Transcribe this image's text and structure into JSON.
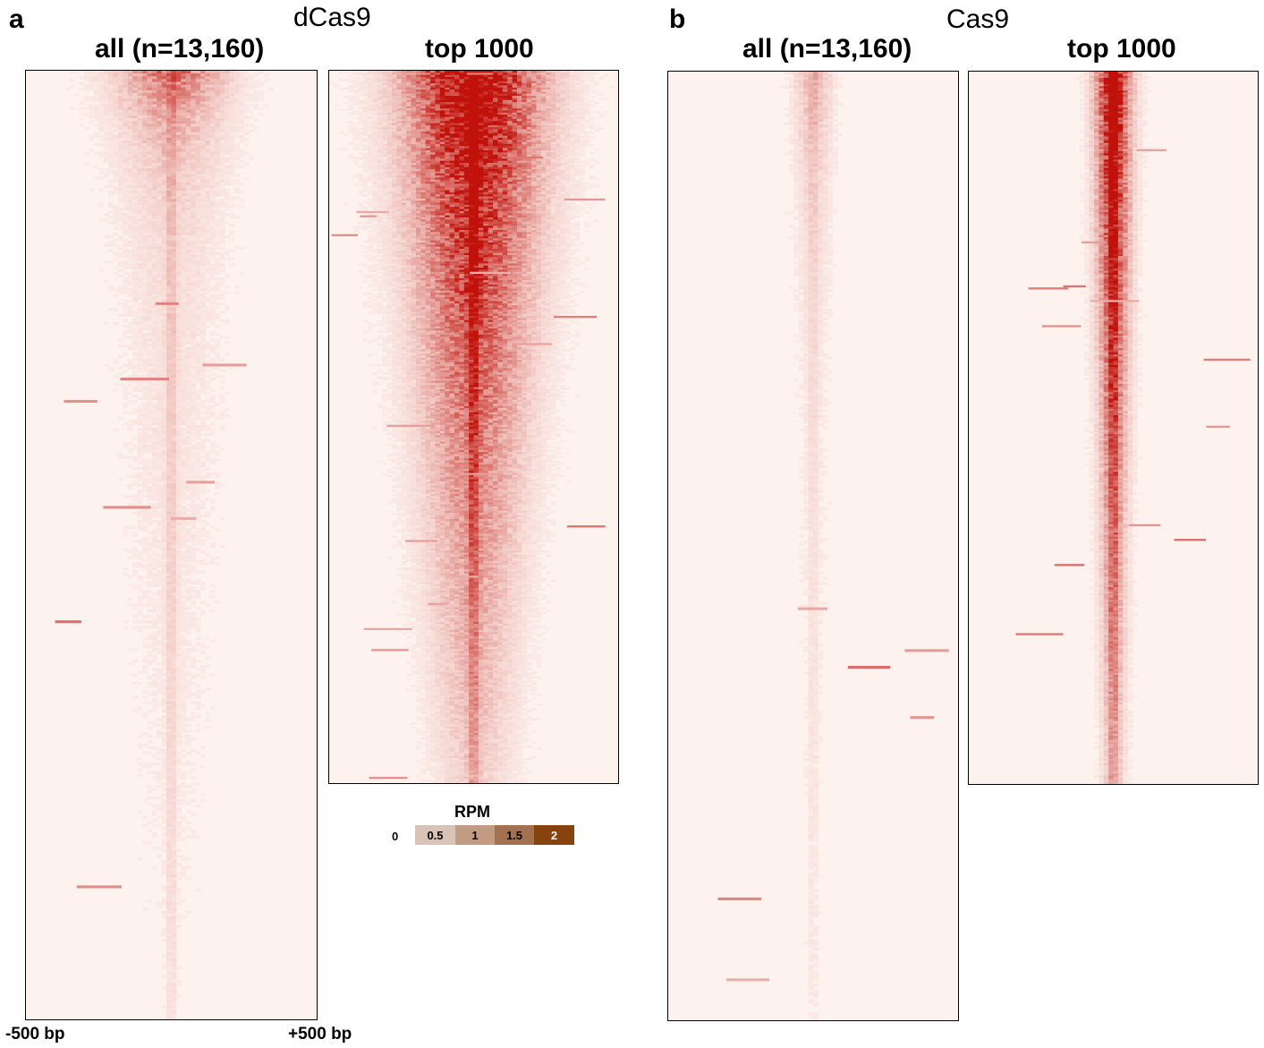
{
  "panels": [
    {
      "letter": "a",
      "title": "dCas9",
      "heatmaps": [
        {
          "label": "all (n=13,160)",
          "peak_intensity": 0.55,
          "center_intensity": 0.18,
          "spread": 0.22,
          "decay": 0.06
        },
        {
          "label": "top 1000",
          "peak_intensity": 1.0,
          "center_intensity": 0.65,
          "spread": 0.28,
          "decay": 0.55
        }
      ]
    },
    {
      "letter": "b",
      "title": "Cas9",
      "heatmaps": [
        {
          "label": "all (n=13,160)",
          "peak_intensity": 0.25,
          "center_intensity": 0.08,
          "spread": 0.06,
          "decay": 0.12
        },
        {
          "label": "top 1000",
          "peak_intensity": 0.85,
          "center_intensity": 0.55,
          "spread": 0.06,
          "decay": 0.7
        }
      ]
    }
  ],
  "x_axis": {
    "left_label": "-500 bp",
    "right_label": "+500 bp"
  },
  "legend": {
    "title": "RPM",
    "zero_label": "0",
    "cells": [
      {
        "label": "0.5",
        "color": "#d8c3b6"
      },
      {
        "label": "1",
        "color": "#c39b82"
      },
      {
        "label": "1.5",
        "color": "#a4714f"
      },
      {
        "label": "2",
        "color": "#87420f"
      }
    ]
  },
  "colors": {
    "low": "#fdf2ee",
    "high": "#c0120a"
  },
  "chart_data": [
    {
      "type": "heatmap",
      "title": "dCas9",
      "subtitle": "all (n=13,160)",
      "xlabel": "",
      "x_range": [
        "-500 bp",
        "+500 bp"
      ],
      "rows": 13160
    },
    {
      "type": "heatmap",
      "title": "dCas9",
      "subtitle": "top 1000",
      "x_range": [
        "-500 bp",
        "+500 bp"
      ],
      "rows": 1000
    },
    {
      "type": "heatmap",
      "title": "Cas9",
      "subtitle": "all (n=13,160)",
      "x_range": [
        "-500 bp",
        "+500 bp"
      ],
      "rows": 13160
    },
    {
      "type": "heatmap",
      "title": "Cas9",
      "subtitle": "top 1000",
      "x_range": [
        "-500 bp",
        "+500 bp"
      ],
      "rows": 1000
    }
  ]
}
